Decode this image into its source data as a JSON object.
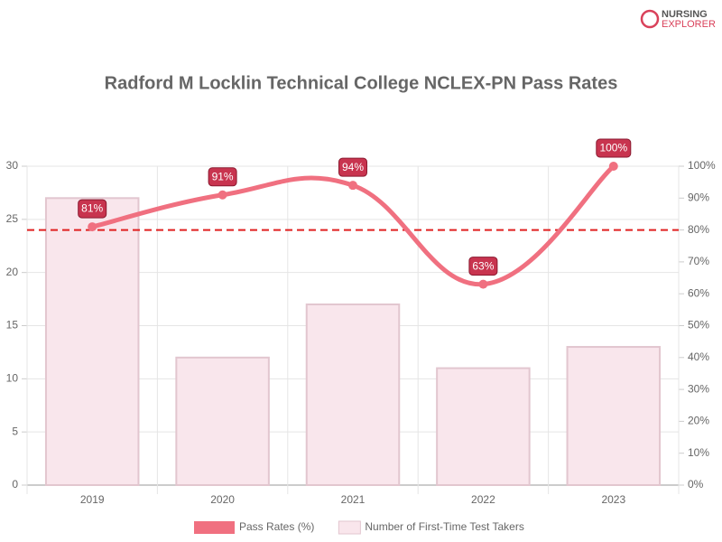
{
  "brand": {
    "line1": "NURSING",
    "line2": "EXPLORER"
  },
  "chart_data": {
    "type": "combo",
    "title": "Radford M Locklin Technical College NCLEX-PN Pass Rates",
    "categories": [
      "2019",
      "2020",
      "2021",
      "2022",
      "2023"
    ],
    "series": [
      {
        "name": "Pass Rates (%)",
        "type": "line",
        "axis": "y2",
        "color": "#f07080",
        "label_color": "#c8344f",
        "values": [
          81,
          91,
          94,
          63,
          100
        ],
        "value_labels": [
          "81%",
          "91%",
          "94%",
          "63%",
          "100%"
        ]
      },
      {
        "name": "Number of First-Time Test Takers",
        "type": "bar",
        "color": "#f9e6ec",
        "border": "#e2c6cf",
        "values": [
          27,
          12,
          17,
          11,
          13
        ]
      }
    ],
    "ylim": [
      0,
      30
    ],
    "yticks": [
      0,
      5,
      10,
      15,
      20,
      25,
      30
    ],
    "y2lim": [
      0,
      100
    ],
    "y2ticks": [
      {
        "value": 0,
        "label": "0%"
      },
      {
        "value": 10,
        "label": "10%"
      },
      {
        "value": 20,
        "label": "20%"
      },
      {
        "value": 30,
        "label": "30%"
      },
      {
        "value": 40,
        "label": "40%"
      },
      {
        "value": 50,
        "label": "50%"
      },
      {
        "value": 60,
        "label": "60%"
      },
      {
        "value": 70,
        "label": "70%"
      },
      {
        "value": 80,
        "label": "80%"
      },
      {
        "value": 90,
        "label": "90%"
      },
      {
        "value": 100,
        "label": "100%"
      }
    ],
    "reference_line": {
      "value": 80,
      "axis": "y2",
      "color": "#e02020"
    },
    "grid": true,
    "legend": "bottom"
  }
}
